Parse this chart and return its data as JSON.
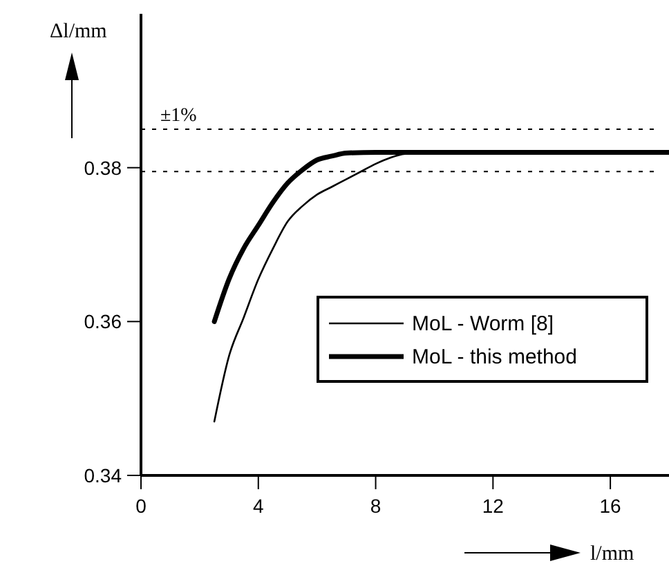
{
  "chart_data": {
    "type": "line",
    "xlabel": "l/mm",
    "ylabel": "Δl/mm",
    "xlim": [
      0,
      18
    ],
    "ylim": [
      0.34,
      0.4
    ],
    "xticks": [
      0,
      4,
      8,
      12,
      16
    ],
    "yticks": [
      0.34,
      0.36,
      0.38
    ],
    "legend": "right",
    "grid": false,
    "marker": "none",
    "line_style": "solid",
    "annotations": [
      "±1%"
    ],
    "ref_lines": [
      {
        "axis": "y",
        "value": 0.385,
        "line_style": "dotted",
        "color": "#000000"
      },
      {
        "axis": "y",
        "value": 0.3795,
        "line_style": "dotted",
        "color": "#000000"
      }
    ],
    "series": [
      {
        "name": "MoL - Worm [8]",
        "color": "#000000",
        "x": [
          2.5,
          3,
          3.5,
          4,
          4.5,
          5,
          5.5,
          6,
          6.5,
          7,
          7.5,
          8,
          8.5,
          9,
          10,
          18
        ],
        "values": [
          0.347,
          0.3555,
          0.3605,
          0.3655,
          0.3695,
          0.373,
          0.375,
          0.3765,
          0.3775,
          0.3785,
          0.3795,
          0.3805,
          0.3813,
          0.3818,
          0.382,
          0.382
        ]
      },
      {
        "name": "MoL - this method",
        "color": "#000000",
        "x": [
          2.5,
          3,
          3.5,
          4,
          4.5,
          5,
          5.5,
          6,
          6.5,
          7,
          8,
          18
        ],
        "values": [
          0.36,
          0.3655,
          0.3695,
          0.3725,
          0.3755,
          0.378,
          0.3797,
          0.381,
          0.3815,
          0.3819,
          0.382,
          0.382
        ]
      }
    ]
  }
}
